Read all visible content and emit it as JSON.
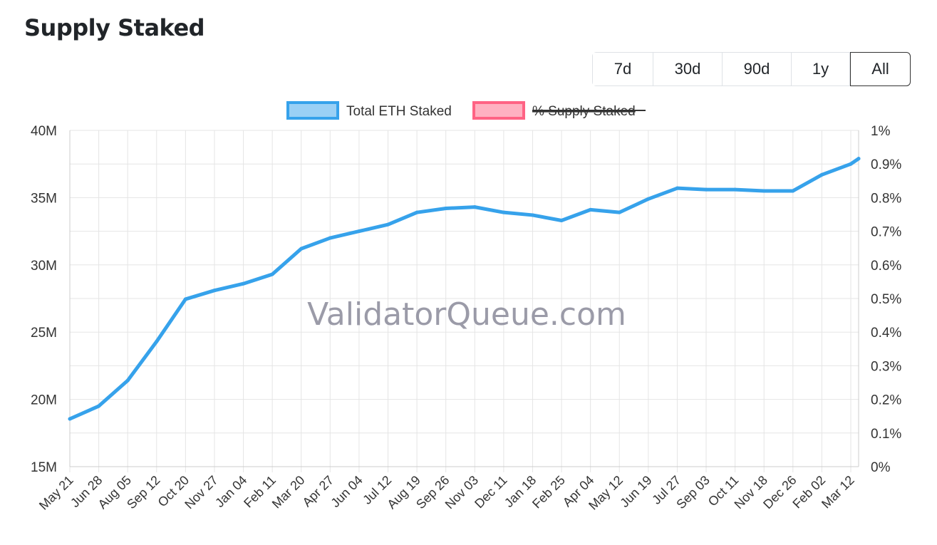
{
  "title": "Supply Staked",
  "range_buttons": [
    {
      "label": "7d"
    },
    {
      "label": "30d"
    },
    {
      "label": "90d"
    },
    {
      "label": "1y"
    },
    {
      "label": "All",
      "active": true
    }
  ],
  "watermark": "ValidatorQueue.com",
  "chart_data": {
    "type": "line",
    "legend": [
      {
        "name": "Total ETH Staked",
        "color": "#36a2eb",
        "fill": "#9ad0f5",
        "hidden": false
      },
      {
        "name": "% Supply Staked",
        "color": "#ff6384",
        "fill": "#ffb1c1",
        "hidden": true
      }
    ],
    "legend_position": "top",
    "grid": true,
    "x_tick_labels": [
      "May 21",
      "Jun 28",
      "Aug 05",
      "Sep 12",
      "Oct 20",
      "Nov 27",
      "Jan 04",
      "Feb 11",
      "Mar 20",
      "Apr 27",
      "Jun 04",
      "Jul 12",
      "Aug 19",
      "Sep 26",
      "Nov 03",
      "Dec 11",
      "Jan 18",
      "Feb 25",
      "Apr 04",
      "May 12",
      "Jun 19",
      "Jul 27",
      "Sep 03",
      "Oct 11",
      "Nov 18",
      "Dec 26",
      "Feb 02",
      "Mar 12"
    ],
    "y_left": {
      "ticks": [
        "15M",
        "20M",
        "25M",
        "30M",
        "35M",
        "40M"
      ],
      "range": [
        15000000,
        40000000
      ]
    },
    "y_right": {
      "ticks": [
        "0%",
        "0.1%",
        "0.2%",
        "0.3%",
        "0.4%",
        "0.5%",
        "0.6%",
        "0.7%",
        "0.8%",
        "0.9%",
        "1%"
      ],
      "range": [
        0,
        1
      ]
    },
    "series": [
      {
        "name": "Total ETH Staked",
        "x": [
          "May 21",
          "Jun 28",
          "Aug 05",
          "Sep 12",
          "Oct 20",
          "Nov 27",
          "Jan 04",
          "Feb 11",
          "Mar 20",
          "Apr 27",
          "Jun 04",
          "Jul 12",
          "Aug 19",
          "Sep 26",
          "Nov 03",
          "Dec 11",
          "Jan 18",
          "Feb 25",
          "Apr 04",
          "May 12",
          "Jun 19",
          "Jul 27",
          "Sep 03",
          "Oct 11",
          "Nov 18",
          "Dec 26",
          "Feb 02",
          "Mar 12",
          "Mar 20"
        ],
        "values": [
          18.55,
          19.5,
          21.4,
          24.3,
          27.45,
          28.1,
          28.6,
          29.3,
          31.2,
          32.0,
          32.5,
          33.0,
          33.9,
          34.2,
          34.3,
          33.9,
          33.7,
          33.3,
          34.1,
          33.9,
          34.9,
          35.7,
          35.6,
          35.6,
          35.5,
          35.5,
          36.7,
          37.5,
          37.9
        ],
        "unit": "M ETH"
      }
    ]
  }
}
